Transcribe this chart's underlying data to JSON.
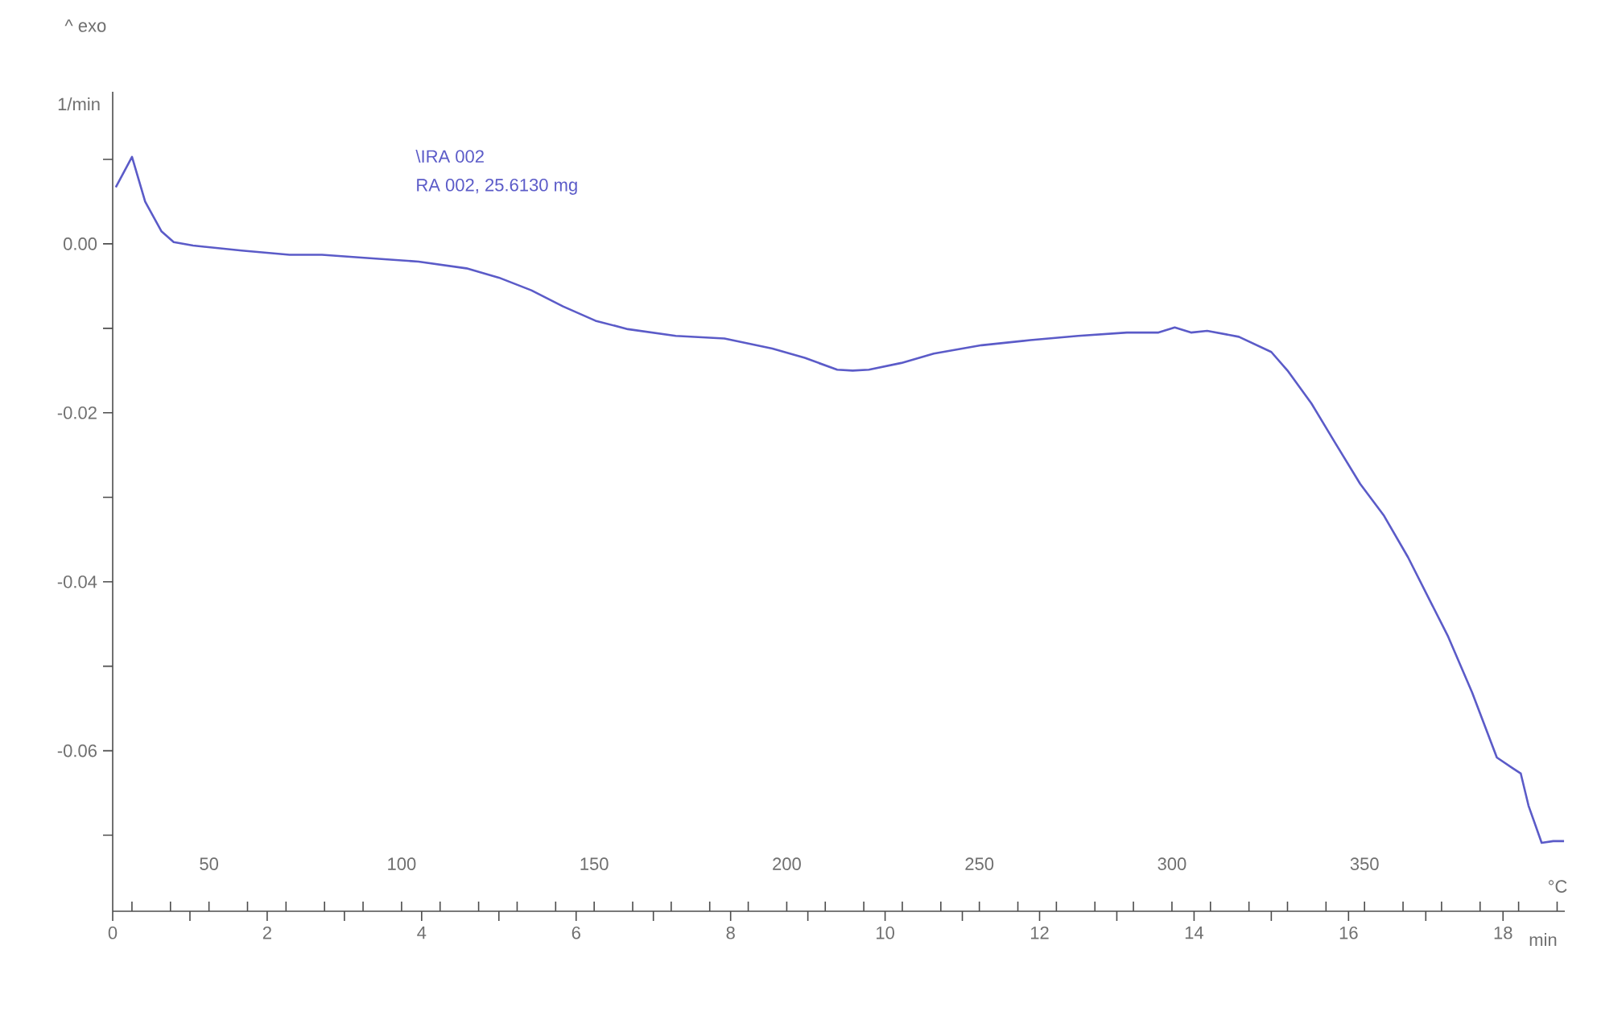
{
  "chart_data": {
    "type": "line",
    "xlabel": "min",
    "ylabel": "1/min",
    "x2label": "°C",
    "annotations": [
      "^ exo",
      "\\IRA 002",
      "RA 002, 25.6130 mg"
    ],
    "xlim": [
      0,
      18.8
    ],
    "ylim": [
      -0.079,
      0.018
    ],
    "x2lim": [
      25,
      402
    ],
    "xticks": [
      0,
      {
        "value": 1,
        "label": null
      },
      2,
      {
        "value": 3,
        "label": null
      },
      4,
      {
        "value": 5,
        "label": null
      },
      6,
      {
        "value": 7,
        "label": null
      },
      8,
      {
        "value": 9,
        "label": null
      },
      10,
      {
        "value": 11,
        "label": null
      },
      12,
      {
        "value": 13,
        "label": null
      },
      14,
      {
        "value": 15,
        "label": null
      },
      16,
      {
        "value": 17,
        "label": null
      },
      18
    ],
    "x2ticks": [
      {
        "value": 30,
        "label": null
      },
      {
        "value": 40,
        "label": null
      },
      50,
      {
        "value": 60,
        "label": null
      },
      {
        "value": 70,
        "label": null
      },
      {
        "value": 80,
        "label": null
      },
      {
        "value": 90,
        "label": null
      },
      100,
      {
        "value": 110,
        "label": null
      },
      {
        "value": 120,
        "label": null
      },
      {
        "value": 130,
        "label": null
      },
      {
        "value": 140,
        "label": null
      },
      150,
      {
        "value": 160,
        "label": null
      },
      {
        "value": 170,
        "label": null
      },
      {
        "value": 180,
        "label": null
      },
      {
        "value": 190,
        "label": null
      },
      200,
      {
        "value": 210,
        "label": null
      },
      {
        "value": 220,
        "label": null
      },
      {
        "value": 230,
        "label": null
      },
      {
        "value": 240,
        "label": null
      },
      250,
      {
        "value": 260,
        "label": null
      },
      {
        "value": 270,
        "label": null
      },
      {
        "value": 280,
        "label": null
      },
      {
        "value": 290,
        "label": null
      },
      300,
      {
        "value": 310,
        "label": null
      },
      {
        "value": 320,
        "label": null
      },
      {
        "value": 330,
        "label": null
      },
      {
        "value": 340,
        "label": null
      },
      350,
      {
        "value": 360,
        "label": null
      },
      {
        "value": 370,
        "label": null
      },
      {
        "value": 380,
        "label": null
      },
      {
        "value": 390,
        "label": null
      },
      {
        "value": 400,
        "label": null
      }
    ],
    "yticks": [
      {
        "value": 0.01,
        "label": null
      },
      {
        "value": 0,
        "label": "0.00"
      },
      {
        "value": -0.01,
        "label": null
      },
      {
        "value": -0.02,
        "label": "-0.02"
      },
      {
        "value": -0.03,
        "label": null
      },
      {
        "value": -0.04,
        "label": "-0.04"
      },
      {
        "value": -0.05,
        "label": null
      },
      {
        "value": -0.06,
        "label": "-0.06"
      },
      {
        "value": -0.07,
        "label": null
      }
    ],
    "line_style": "solid",
    "series": [
      {
        "color": "#5b5bc8",
        "x": [
          0.04,
          0.25,
          0.42,
          0.63,
          0.79,
          1.04,
          1.67,
          2.29,
          2.71,
          3.33,
          3.96,
          4.58,
          5.0,
          5.42,
          5.83,
          6.25,
          6.67,
          7.29,
          7.92,
          8.54,
          8.96,
          9.38,
          9.58,
          9.79,
          10.21,
          10.63,
          11.25,
          11.88,
          12.5,
          13.13,
          13.54,
          13.75,
          13.96,
          14.17,
          14.58,
          15.0,
          15.21,
          15.52,
          15.83,
          16.15,
          16.46,
          16.77,
          17.08,
          17.29,
          17.6,
          17.92,
          18.13,
          18.23,
          18.33,
          18.5,
          18.65,
          18.79
        ],
        "values": [
          0.0067,
          0.0103,
          0.005,
          0.0015,
          0.0002,
          -0.0002,
          -0.0008,
          -0.0013,
          -0.0013,
          -0.0017,
          -0.0021,
          -0.0029,
          -0.004,
          -0.0055,
          -0.0074,
          -0.0091,
          -0.0101,
          -0.0109,
          -0.0112,
          -0.0124,
          -0.0135,
          -0.0149,
          -0.015,
          -0.0149,
          -0.0141,
          -0.013,
          -0.012,
          -0.0114,
          -0.0109,
          -0.0105,
          -0.0105,
          -0.0099,
          -0.0105,
          -0.0103,
          -0.011,
          -0.0128,
          -0.015,
          -0.0189,
          -0.0236,
          -0.0284,
          -0.0322,
          -0.0371,
          -0.0427,
          -0.0465,
          -0.0531,
          -0.0608,
          -0.0621,
          -0.0627,
          -0.0665,
          -0.0709,
          -0.0707,
          -0.0707
        ]
      }
    ]
  }
}
